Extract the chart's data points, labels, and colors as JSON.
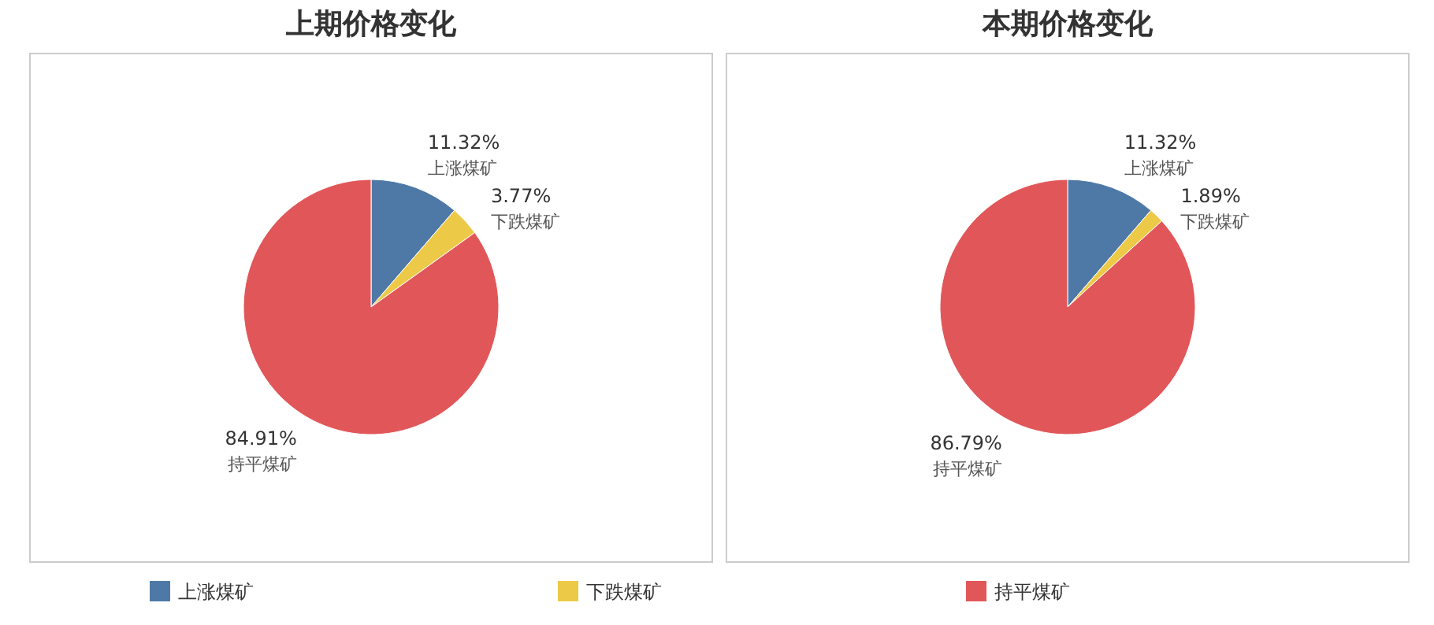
{
  "chart_data": [
    {
      "type": "pie",
      "title": "上期价格变化",
      "categories": [
        "上涨煤矿",
        "下跌煤矿",
        "持平煤矿"
      ],
      "values": [
        11.32,
        3.77,
        84.91
      ],
      "value_labels": [
        "11.32%",
        "3.77%",
        "84.91%"
      ],
      "colors": [
        "#4e79a7",
        "#edc948",
        "#e15759"
      ],
      "legend": "bottom"
    },
    {
      "type": "pie",
      "title": "本期价格变化",
      "categories": [
        "上涨煤矿",
        "下跌煤矿",
        "持平煤矿"
      ],
      "values": [
        11.32,
        1.89,
        86.79
      ],
      "value_labels": [
        "11.32%",
        "1.89%",
        "86.79%"
      ],
      "colors": [
        "#4e79a7",
        "#edc948",
        "#e15759"
      ]
    }
  ]
}
